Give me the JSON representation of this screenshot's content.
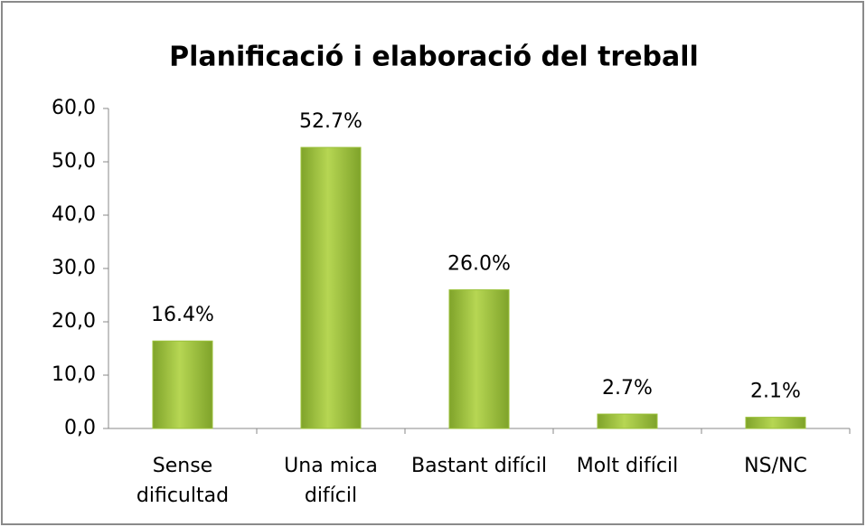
{
  "chart_data": {
    "type": "bar",
    "title": "Planificació i elaboració del treball",
    "categories": [
      "Sense dificultad",
      "Una mica difícil",
      "Bastant difícil",
      "Molt difícil",
      "NS/NC"
    ],
    "values": [
      16.4,
      52.7,
      26.0,
      2.7,
      2.1
    ],
    "value_labels": [
      "16.4%",
      "52.7%",
      "26.0%",
      "2.7%",
      "2.1%"
    ],
    "color": "#9bc13a",
    "ylim": [
      0,
      60
    ],
    "yticks": [
      {
        "value": 0,
        "label": "0,0"
      },
      {
        "value": 10,
        "label": "10,0"
      },
      {
        "value": 20,
        "label": "20,0"
      },
      {
        "value": 30,
        "label": "30,0"
      },
      {
        "value": 40,
        "label": "40,0"
      },
      {
        "value": 50,
        "label": "50,0"
      },
      {
        "value": 60,
        "label": "60,0"
      }
    ],
    "grid": false
  }
}
